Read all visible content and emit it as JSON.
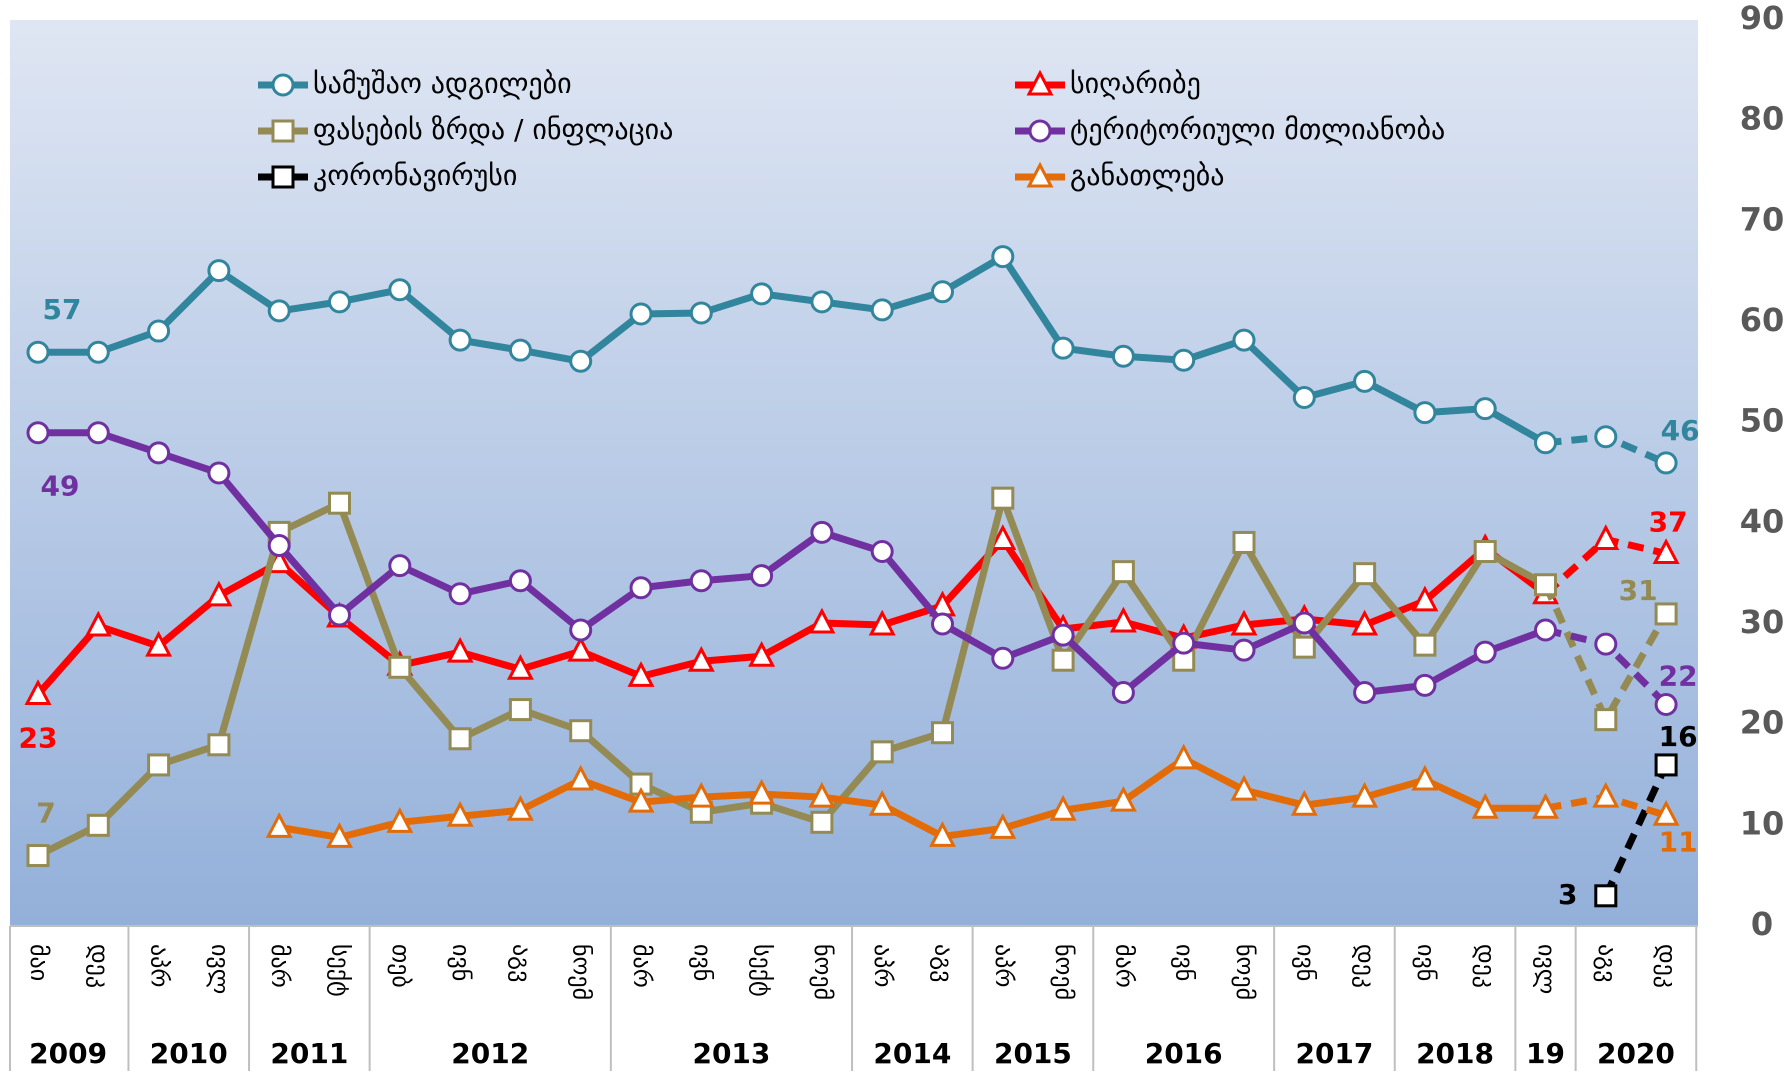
{
  "chart_data": {
    "type": "line",
    "categories": [
      "მაი",
      "დეკ",
      "აპრ",
      "ივლ",
      "მარ",
      "სექტ",
      "თებ",
      "ივნ",
      "აგვ",
      "ნოემ",
      "მარ",
      "ივნ",
      "სექტ",
      "ნოემ",
      "აპრ",
      "აგვ",
      "აპრ",
      "ნოემ",
      "მარ",
      "ივნ",
      "ნოემ",
      "ივნ",
      "დეკ",
      "ივნ",
      "დეკ",
      "ივლ",
      "აგვ",
      "დეკ"
    ],
    "years": [
      {
        "label": "2009",
        "count": 2
      },
      {
        "label": "2010",
        "count": 2
      },
      {
        "label": "2011",
        "count": 2
      },
      {
        "label": "2012",
        "count": 4
      },
      {
        "label": "2013",
        "count": 4
      },
      {
        "label": "2014",
        "count": 2
      },
      {
        "label": "2015",
        "count": 2
      },
      {
        "label": "2016",
        "count": 3
      },
      {
        "label": "2017",
        "count": 2
      },
      {
        "label": "2018",
        "count": 2
      },
      {
        "label": "19",
        "count": 1
      },
      {
        "label": "2020",
        "count": 2
      }
    ],
    "ylim": [
      0,
      90
    ],
    "yticks": [
      0,
      10,
      20,
      30,
      40,
      50,
      60,
      70,
      80,
      90
    ],
    "y_axis_side": "right",
    "grid": false,
    "series": [
      {
        "name": "სამუშაო ადგილები",
        "color": "#31859c",
        "marker": "circle",
        "dash_from": 25,
        "labeled": [
          0,
          27
        ],
        "values": [
          57,
          57,
          59.1,
          65.1,
          61.1,
          62,
          63.2,
          58.2,
          57.2,
          56.1,
          60.8,
          60.9,
          62.8,
          62,
          61.2,
          63,
          66.5,
          57.4,
          56.6,
          56.2,
          58.2,
          52.5,
          54.1,
          51,
          51.4,
          48,
          48.6,
          46
        ]
      },
      {
        "name": "სიღარიბე",
        "color": "#ff0000",
        "marker": "triangle",
        "dash_from": 25,
        "labeled": [
          0,
          27
        ],
        "values": [
          23,
          29.8,
          27.8,
          32.8,
          36.1,
          30.7,
          25.9,
          27.2,
          25.5,
          27.3,
          24.8,
          26.3,
          26.8,
          30.1,
          29.9,
          31.8,
          38.4,
          29.5,
          30.2,
          28.6,
          29.9,
          30.5,
          29.9,
          32.3,
          37.5,
          33,
          38.4,
          37
        ]
      },
      {
        "name": "ფასების ზრდა / ინფლაცია",
        "color": "#948a54",
        "marker": "square",
        "dash_from": 25,
        "labeled": [
          0,
          27
        ],
        "values": [
          7,
          10,
          16,
          18,
          39.1,
          42,
          25.7,
          18.6,
          21.5,
          19.4,
          14.1,
          11.3,
          12.2,
          10.3,
          17.3,
          19.2,
          42.5,
          26.4,
          35.2,
          26.4,
          38.1,
          27.7,
          35,
          27.9,
          37.2,
          33.9,
          20.5,
          31
        ]
      },
      {
        "name": "ტერიტორიული მთლიანობა",
        "color": "#7030a0",
        "marker": "circle",
        "dash_from": 25,
        "labeled": [
          0,
          27
        ],
        "values": [
          49,
          49,
          47,
          45,
          37.8,
          30.9,
          35.8,
          33,
          34.3,
          29.4,
          33.6,
          34.3,
          34.8,
          39.1,
          37.2,
          30,
          26.6,
          28.9,
          23.2,
          28.1,
          27.4,
          30.1,
          23.2,
          23.9,
          27.2,
          29.4,
          28,
          22
        ]
      },
      {
        "name": "კორონავირუსი",
        "color": "#000000",
        "marker": "square",
        "dash_from": 26,
        "labeled": [
          26,
          27
        ],
        "values": [
          null,
          null,
          null,
          null,
          null,
          null,
          null,
          null,
          null,
          null,
          null,
          null,
          null,
          null,
          null,
          null,
          null,
          null,
          null,
          null,
          null,
          null,
          null,
          null,
          null,
          null,
          3,
          16
        ]
      },
      {
        "name": "განათლება",
        "color": "#e36c09",
        "marker": "triangle",
        "dash_from": 25,
        "labeled": [
          27
        ],
        "values": [
          null,
          null,
          null,
          null,
          9.8,
          8.8,
          10.3,
          10.9,
          11.5,
          14.5,
          12.3,
          12.8,
          13.1,
          12.8,
          12,
          8.9,
          9.7,
          11.5,
          12.4,
          16.6,
          13.5,
          12,
          12.8,
          14.5,
          11.7,
          11.7,
          12.8,
          11
        ]
      }
    ]
  }
}
